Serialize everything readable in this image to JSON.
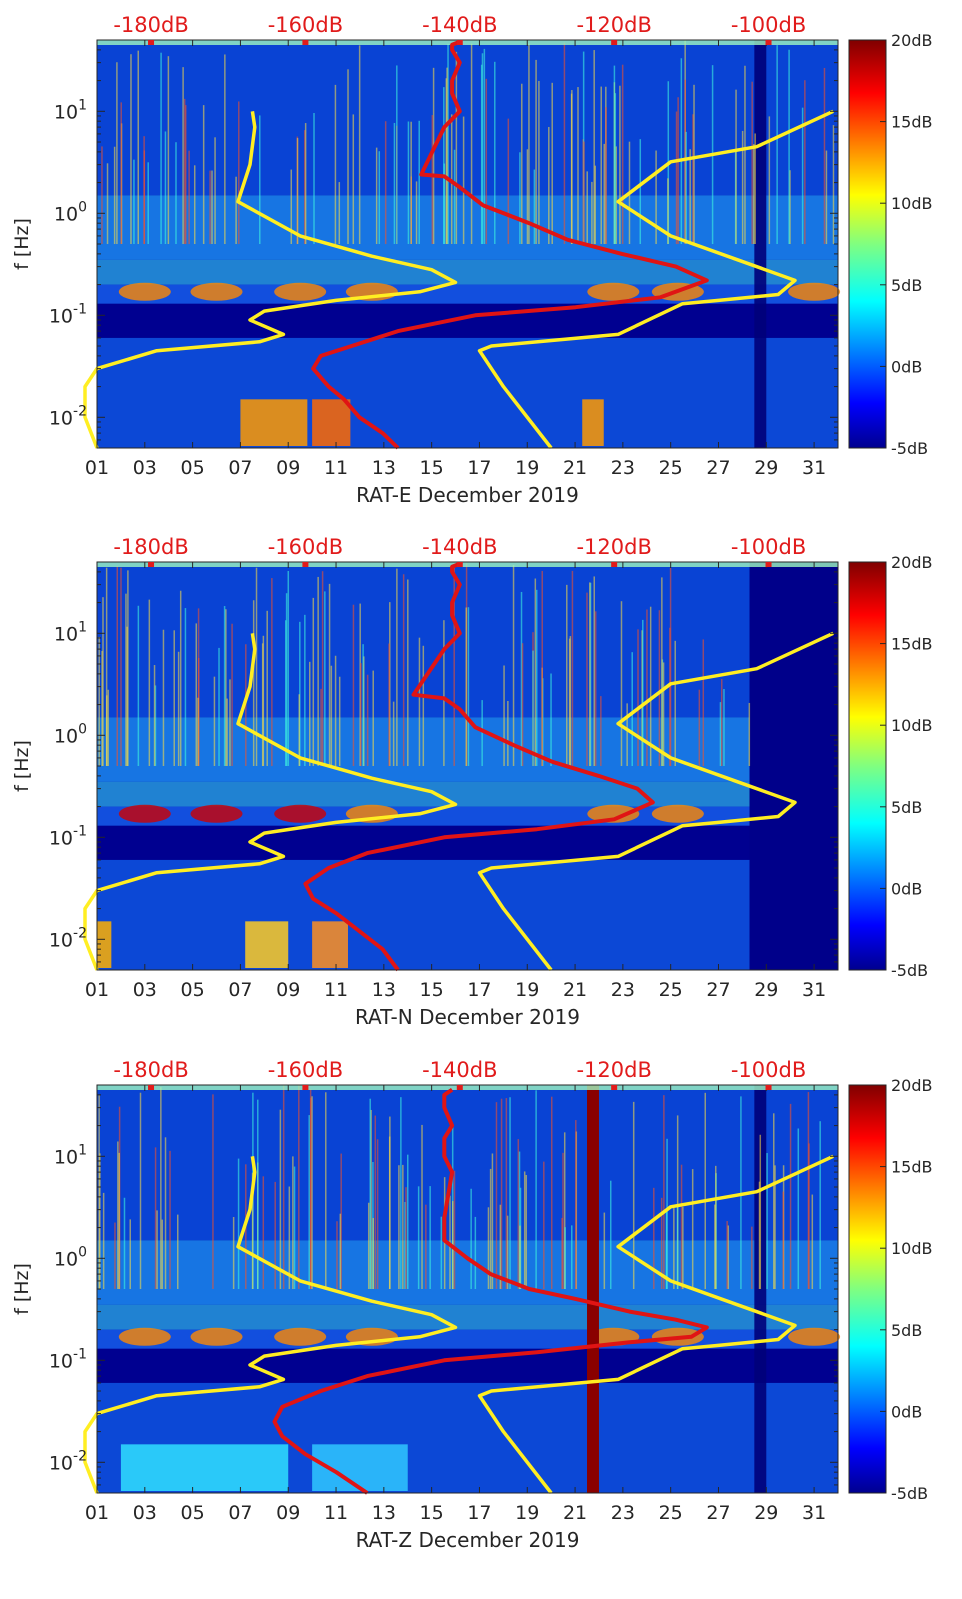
{
  "colors": {
    "background": "#000090",
    "noise_curve": "#ffee22",
    "power_curve": "#e01414",
    "top_labels": "#e11b1b",
    "axes": "#262626"
  },
  "colorbar": {
    "ticks": [
      "20dB",
      "15dB",
      "10dB",
      "5dB",
      "0dB",
      "-5dB"
    ],
    "range": [
      -5,
      20
    ]
  },
  "top_axis": {
    "ticks": [
      "-180dB",
      "-160dB",
      "-140dB",
      "-120dB",
      "-100dB"
    ],
    "range": [
      -187,
      -91
    ]
  },
  "chart_data": [
    {
      "type": "heatmap",
      "title": "",
      "xlabel": "RAT-E December 2019",
      "ylabel": "f [Hz]",
      "x_ticks": [
        "01",
        "03",
        "05",
        "07",
        "09",
        "11",
        "13",
        "15",
        "17",
        "19",
        "21",
        "23",
        "25",
        "27",
        "29",
        "31"
      ],
      "y_ticks": [
        "10^1",
        "10^0",
        "10^-1",
        "10^-2"
      ],
      "xlim": [
        1,
        32
      ],
      "ylim_hz": [
        0.005,
        50
      ],
      "colorbar_label_range_db": [
        -5,
        20
      ],
      "series": [
        {
          "name": "yellow reference curve",
          "x_day": [
            7.5,
            7.6,
            7.4,
            6.9,
            9.5,
            12.5,
            15.0,
            16.0,
            14.5,
            11.0,
            8.0,
            7.4,
            8.8,
            7.8,
            3.5,
            1.0,
            0.5,
            0.5,
            1.0
          ],
          "f_hz": [
            10,
            7,
            3,
            1.3,
            0.6,
            0.38,
            0.28,
            0.21,
            0.17,
            0.14,
            0.11,
            0.09,
            0.065,
            0.055,
            0.045,
            0.03,
            0.02,
            0.01,
            0.005
          ]
        },
        {
          "name": "red power curve (top axis dB)",
          "x_db": [
            -140,
            -141,
            -141,
            -140,
            -141,
            -141,
            -140,
            -142,
            -145,
            -142,
            -140,
            -137,
            -131,
            -126,
            -119,
            -112,
            -108,
            -114,
            -125,
            -138,
            -148,
            -154,
            -158,
            -159,
            -157,
            -155,
            -153,
            -150,
            -148
          ],
          "f_hz": [
            48,
            45,
            40,
            30,
            20,
            15,
            10,
            7,
            2.4,
            2.3,
            1.8,
            1.2,
            0.8,
            0.55,
            0.4,
            0.3,
            0.22,
            0.15,
            0.12,
            0.1,
            0.07,
            0.05,
            0.04,
            0.03,
            0.02,
            0.015,
            0.01,
            0.007,
            0.005
          ]
        },
        {
          "name": "yellow reference curve (right)",
          "x_day": [
            31.8,
            28.6,
            25.0,
            22.8,
            25.0,
            27.8,
            30.2,
            29.5,
            27.0,
            25.5,
            22.8,
            17.5,
            17.0,
            18.0,
            20.0
          ],
          "f_hz": [
            10,
            4.5,
            3.2,
            1.3,
            0.6,
            0.35,
            0.22,
            0.16,
            0.14,
            0.13,
            0.065,
            0.05,
            0.045,
            0.02,
            0.005
          ]
        }
      ]
    },
    {
      "type": "heatmap",
      "title": "",
      "xlabel": "RAT-N December 2019",
      "ylabel": "f [Hz]",
      "x_ticks": [
        "01",
        "03",
        "05",
        "07",
        "09",
        "11",
        "13",
        "15",
        "17",
        "19",
        "21",
        "23",
        "25",
        "27",
        "29",
        "31"
      ],
      "y_ticks": [
        "10^1",
        "10^0",
        "10^-1",
        "10^-2"
      ],
      "xlim": [
        1,
        32
      ],
      "ylim_hz": [
        0.005,
        50
      ],
      "colorbar_label_range_db": [
        -5,
        20
      ],
      "series": [
        {
          "name": "yellow reference curve",
          "x_day": [
            7.5,
            7.6,
            7.4,
            6.9,
            9.5,
            12.5,
            15.0,
            16.0,
            14.5,
            11.0,
            8.0,
            7.4,
            8.8,
            7.8,
            3.5,
            1.0,
            0.5,
            0.5,
            1.0
          ],
          "f_hz": [
            10,
            7,
            3,
            1.3,
            0.6,
            0.38,
            0.28,
            0.21,
            0.17,
            0.14,
            0.11,
            0.09,
            0.065,
            0.055,
            0.045,
            0.03,
            0.02,
            0.01,
            0.005
          ]
        },
        {
          "name": "red power curve (top axis dB)",
          "x_db": [
            -140,
            -141,
            -141,
            -140,
            -141,
            -141,
            -140,
            -142,
            -146,
            -142,
            -140,
            -138,
            -133,
            -128,
            -122,
            -117,
            -115,
            -120,
            -130,
            -142,
            -152,
            -157,
            -160,
            -159,
            -156,
            -153,
            -150,
            -148
          ],
          "f_hz": [
            48,
            45,
            40,
            30,
            20,
            15,
            10,
            7,
            2.5,
            2.3,
            1.8,
            1.2,
            0.8,
            0.55,
            0.4,
            0.3,
            0.22,
            0.15,
            0.12,
            0.1,
            0.07,
            0.05,
            0.035,
            0.025,
            0.018,
            0.012,
            0.008,
            0.005
          ]
        },
        {
          "name": "yellow reference curve (right)",
          "x_day": [
            31.8,
            28.6,
            25.0,
            22.8,
            25.0,
            27.8,
            30.2,
            29.5,
            27.0,
            25.5,
            22.8,
            17.5,
            17.0,
            18.0,
            20.0
          ],
          "f_hz": [
            10,
            4.5,
            3.2,
            1.3,
            0.6,
            0.35,
            0.22,
            0.16,
            0.14,
            0.13,
            0.065,
            0.05,
            0.045,
            0.02,
            0.005
          ]
        }
      ]
    },
    {
      "type": "heatmap",
      "title": "",
      "xlabel": "RAT-Z December 2019",
      "ylabel": "f [Hz]",
      "x_ticks": [
        "01",
        "03",
        "05",
        "07",
        "09",
        "11",
        "13",
        "15",
        "17",
        "19",
        "21",
        "23",
        "25",
        "27",
        "29",
        "31"
      ],
      "y_ticks": [
        "10^1",
        "10^0",
        "10^-1",
        "10^-2"
      ],
      "xlim": [
        1,
        32
      ],
      "ylim_hz": [
        0.005,
        50
      ],
      "colorbar_label_range_db": [
        -5,
        20
      ],
      "series": [
        {
          "name": "yellow reference curve",
          "x_day": [
            7.5,
            7.6,
            7.4,
            6.9,
            9.5,
            12.5,
            15.0,
            16.0,
            14.5,
            11.0,
            8.0,
            7.4,
            8.8,
            7.8,
            3.5,
            1.0,
            0.5,
            0.5,
            1.0
          ],
          "f_hz": [
            10,
            7,
            3,
            1.3,
            0.6,
            0.38,
            0.28,
            0.21,
            0.17,
            0.14,
            0.11,
            0.09,
            0.065,
            0.055,
            0.045,
            0.03,
            0.02,
            0.01,
            0.005
          ]
        },
        {
          "name": "red power curve (top axis dB)",
          "x_db": [
            -141,
            -142,
            -142,
            -141,
            -142,
            -142,
            -141,
            -142,
            -142,
            -139,
            -136,
            -131,
            -125,
            -118,
            -112,
            -108,
            -110,
            -118,
            -130,
            -142,
            -152,
            -158,
            -163,
            -164,
            -163,
            -160,
            -156,
            -152
          ],
          "f_hz": [
            45,
            40,
            30,
            20,
            15,
            10,
            7,
            2.5,
            1.5,
            1.0,
            0.7,
            0.5,
            0.4,
            0.3,
            0.25,
            0.21,
            0.17,
            0.15,
            0.12,
            0.1,
            0.07,
            0.05,
            0.035,
            0.025,
            0.018,
            0.012,
            0.008,
            0.005
          ]
        },
        {
          "name": "yellow reference curve (right)",
          "x_day": [
            31.8,
            28.6,
            25.0,
            22.8,
            25.0,
            27.8,
            30.2,
            29.5,
            27.0,
            25.5,
            22.8,
            17.5,
            17.0,
            18.0,
            20.0
          ],
          "f_hz": [
            10,
            4.5,
            3.2,
            1.3,
            0.6,
            0.35,
            0.22,
            0.16,
            0.14,
            0.13,
            0.065,
            0.05,
            0.045,
            0.02,
            0.005
          ]
        }
      ]
    }
  ]
}
